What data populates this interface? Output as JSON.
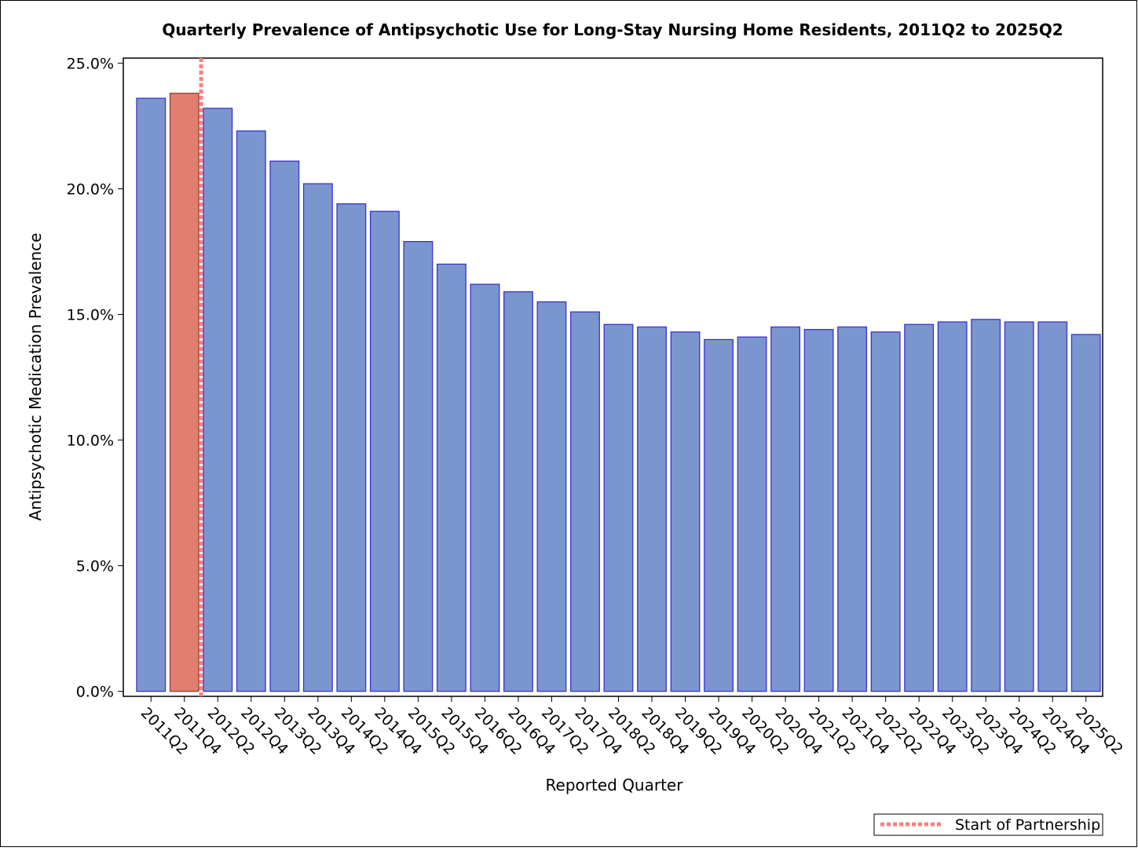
{
  "chart_data": {
    "type": "bar",
    "title": "Quarterly Prevalence of Antipsychotic Use for Long-Stay Nursing Home Residents, 2011Q2 to 2025Q2",
    "x_label": "Reported Quarter",
    "y_label": "Antipsychotic Medication Prevalence",
    "categories": [
      "2011Q2",
      "2011Q4",
      "2012Q2",
      "2012Q4",
      "2013Q2",
      "2013Q4",
      "2014Q2",
      "2014Q4",
      "2015Q2",
      "2015Q4",
      "2016Q2",
      "2016Q4",
      "2017Q2",
      "2017Q4",
      "2018Q2",
      "2018Q4",
      "2019Q2",
      "2019Q4",
      "2020Q2",
      "2020Q4",
      "2021Q2",
      "2021Q4",
      "2022Q2",
      "2022Q4",
      "2023Q2",
      "2023Q4",
      "2024Q2",
      "2024Q4",
      "2025Q2"
    ],
    "values": [
      23.6,
      23.8,
      23.2,
      22.3,
      21.1,
      20.2,
      19.4,
      19.1,
      17.9,
      17.0,
      16.2,
      15.9,
      15.5,
      15.1,
      14.6,
      14.5,
      14.3,
      14.0,
      14.1,
      14.5,
      14.4,
      14.5,
      14.3,
      14.6,
      14.7,
      14.8,
      14.7,
      14.7,
      14.2
    ],
    "colors": [
      "#7b96cf",
      "#e07f6f",
      "#7b96cf",
      "#7b96cf",
      "#7b96cf",
      "#7b96cf",
      "#7b96cf",
      "#7b96cf",
      "#7b96cf",
      "#7b96cf",
      "#7b96cf",
      "#7b96cf",
      "#7b96cf",
      "#7b96cf",
      "#7b96cf",
      "#7b96cf",
      "#7b96cf",
      "#7b96cf",
      "#7b96cf",
      "#7b96cf",
      "#7b96cf",
      "#7b96cf",
      "#7b96cf",
      "#7b96cf",
      "#7b96cf",
      "#7b96cf",
      "#7b96cf",
      "#7b96cf",
      "#7b96cf"
    ],
    "ylim": [
      -0.2,
      25.2
    ],
    "yticks": [
      {
        "value": 0,
        "label": "0.0%"
      },
      {
        "value": 5,
        "label": "5.0%"
      },
      {
        "value": 10,
        "label": "10.0%"
      },
      {
        "value": 15,
        "label": "15.0%"
      },
      {
        "value": 20,
        "label": "20.0%"
      },
      {
        "value": 25,
        "label": "25.0%"
      }
    ],
    "reference_line": {
      "at": "2011Q4",
      "label": "Start of Partnership",
      "color": "#ff7f7f"
    },
    "legend": "bottom-right"
  }
}
